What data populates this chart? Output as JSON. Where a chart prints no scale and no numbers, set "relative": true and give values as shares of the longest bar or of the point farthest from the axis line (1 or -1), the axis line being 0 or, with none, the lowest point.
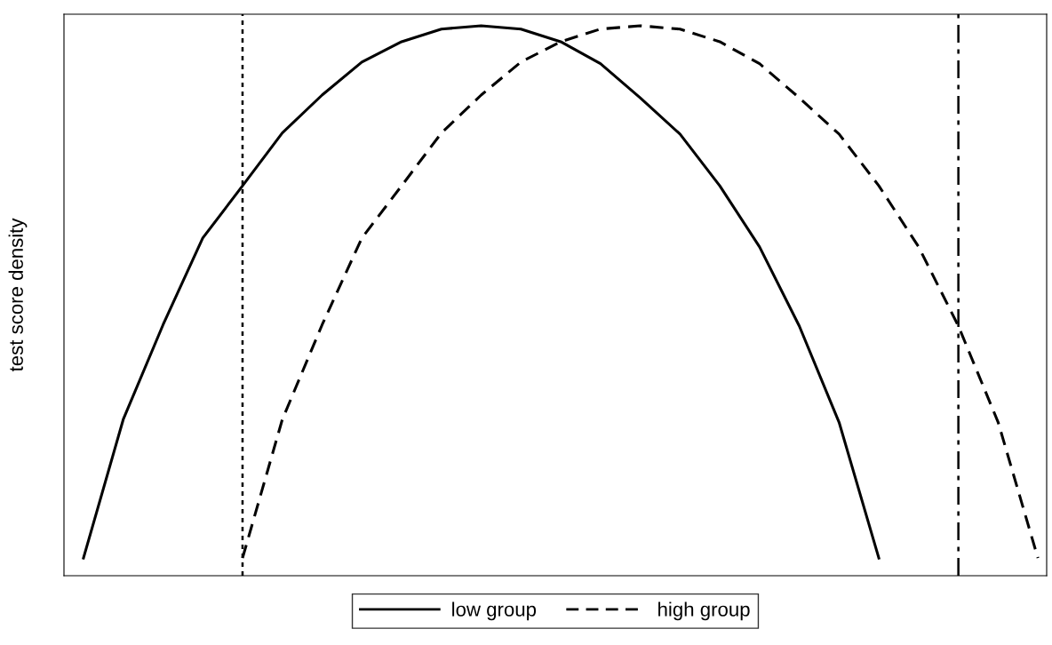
{
  "chart_data": {
    "type": "line",
    "ylabel": "test score density",
    "relative": true,
    "tick_labels": false,
    "legend": "bottom",
    "categories": [
      null,
      null,
      null,
      null,
      null,
      null,
      null,
      null,
      null,
      null,
      null,
      null,
      null,
      null,
      null,
      null,
      null,
      null,
      null,
      null,
      null,
      null,
      null,
      null,
      null
    ],
    "series": [
      {
        "name": "low group",
        "color": "#000000",
        "line_style": "solid",
        "values": [
          0.032,
          0.284,
          0.456,
          0.614,
          0.709,
          0.805,
          0.874,
          0.934,
          0.971,
          0.994,
          1.0,
          0.994,
          0.971,
          0.931,
          0.869,
          0.803,
          0.709,
          0.598,
          0.454,
          0.279,
          0.032,
          null,
          null,
          null,
          null
        ]
      },
      {
        "name": "high group",
        "color": "#000000",
        "line_style": "dashed",
        "values": [
          null,
          null,
          null,
          null,
          0.032,
          0.284,
          0.456,
          0.614,
          0.709,
          0.805,
          0.874,
          0.934,
          0.971,
          0.994,
          1.0,
          0.994,
          0.971,
          0.931,
          0.869,
          0.803,
          0.709,
          0.598,
          0.454,
          0.279,
          0.032
        ]
      }
    ]
  }
}
